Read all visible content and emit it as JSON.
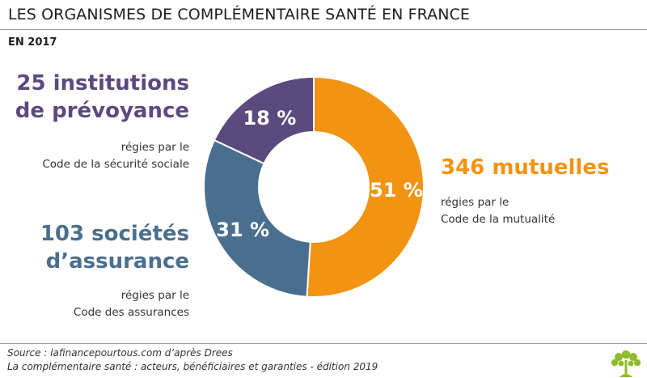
{
  "header": {
    "title": "LES ORGANISMES DE COMPLÉMENTAIRE SANTÉ EN FRANCE",
    "subtitle": "EN 2017"
  },
  "groups": {
    "institutions": {
      "headline": [
        "25 institutions",
        "de prévoyance"
      ],
      "desc": [
        "régies par le",
        "Code de la sécurité sociale"
      ]
    },
    "mutuelles": {
      "headline": [
        "346 mutuelles"
      ],
      "desc": [
        "régies par le",
        "Code de la mutualité"
      ]
    },
    "societes": {
      "headline": [
        "103 sociétés",
        "d’assurance"
      ],
      "desc": [
        "régies par le",
        "Code des assurances"
      ]
    }
  },
  "chart_data": {
    "type": "pie",
    "title": "LES ORGANISMES DE COMPLÉMENTAIRE SANTÉ EN FRANCE",
    "subtitle": "EN 2017",
    "donut": true,
    "slices": [
      {
        "key": "mutuelles",
        "value": 51,
        "label": "51 %",
        "color": "#f29312"
      },
      {
        "key": "societes",
        "value": 31,
        "label": "31 %",
        "color": "#4a6f8e"
      },
      {
        "key": "institutions",
        "value": 18,
        "label": "18 %",
        "color": "#5b4a7e"
      }
    ]
  },
  "colors": {
    "mutuelles": "#f29312",
    "societes": "#4a6f8e",
    "institutions": "#5b4a7e",
    "logo": "#8dbb2c"
  },
  "footer": {
    "source": "Source : lafinancepourtous.com d’après Drees",
    "publication": "La complémentaire santé : acteurs, bénéficiaires et garanties - édition 2019"
  },
  "logo": {
    "icon": "tree-icon"
  }
}
